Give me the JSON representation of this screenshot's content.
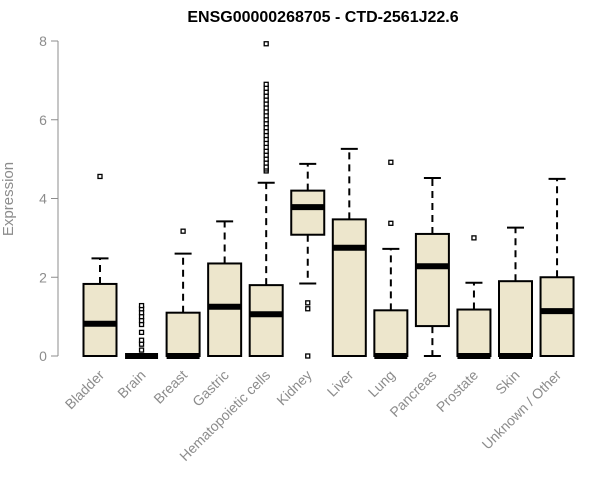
{
  "chart_data": {
    "type": "box",
    "title": "ENSG00000268705 - CTD-2561J22.6",
    "xlabel": "",
    "ylabel": "Expression",
    "ylim": [
      0,
      8
    ],
    "yticks": [
      0,
      2,
      4,
      6,
      8
    ],
    "grid": false,
    "colors": {
      "box_fill": "#ede6cc",
      "stroke": "#000000",
      "axis": "#8c8c8c"
    },
    "categories": [
      "Bladder",
      "Brain",
      "Breast",
      "Gastric",
      "Hematopoietic cells",
      "Kidney",
      "Liver",
      "Lung",
      "Pancreas",
      "Prostate",
      "Skin",
      "Unknown / Other"
    ],
    "boxes": [
      {
        "category": "Bladder",
        "whisker_low": 0,
        "q1": 0,
        "median": 0.82,
        "q3": 1.83,
        "whisker_high": 2.48,
        "outliers": [
          4.56
        ]
      },
      {
        "category": "Brain",
        "whisker_low": 0,
        "q1": 0,
        "median": 0,
        "q3": 0,
        "whisker_high": 0,
        "outliers": [
          0.15,
          0.3,
          0.4,
          0.6,
          0.8,
          0.9,
          1.0,
          1.1,
          1.2,
          1.28
        ]
      },
      {
        "category": "Breast",
        "whisker_low": 0,
        "q1": 0,
        "median": 0,
        "q3": 1.1,
        "whisker_high": 2.6,
        "outliers": [
          3.17
        ]
      },
      {
        "category": "Gastric",
        "whisker_low": 0,
        "q1": 0,
        "median": 1.25,
        "q3": 2.35,
        "whisker_high": 3.42,
        "outliers": []
      },
      {
        "category": "Hematopoietic cells",
        "whisker_low": 0,
        "q1": 0,
        "median": 1.06,
        "q3": 1.8,
        "whisker_high": 4.4,
        "outliers": [
          4.7,
          4.75,
          4.8,
          4.9,
          5.0,
          5.1,
          5.2,
          5.3,
          5.4,
          5.5,
          5.6,
          5.7,
          5.8,
          5.9,
          6.0,
          6.1,
          6.2,
          6.3,
          6.4,
          6.5,
          6.6,
          6.7,
          6.8,
          6.9,
          7.93
        ]
      },
      {
        "category": "Kidney",
        "whisker_low": 1.84,
        "q1": 3.08,
        "median": 3.78,
        "q3": 4.2,
        "whisker_high": 4.88,
        "outliers": [
          0,
          1.2,
          1.35
        ]
      },
      {
        "category": "Liver",
        "whisker_low": 0,
        "q1": 0,
        "median": 2.75,
        "q3": 3.47,
        "whisker_high": 5.26,
        "outliers": []
      },
      {
        "category": "Lung",
        "whisker_low": 0,
        "q1": 0,
        "median": 0,
        "q3": 1.16,
        "whisker_high": 2.72,
        "outliers": [
          3.37,
          4.92
        ]
      },
      {
        "category": "Pancreas",
        "whisker_low": 0,
        "q1": 0.76,
        "median": 2.28,
        "q3": 3.1,
        "whisker_high": 4.52,
        "outliers": []
      },
      {
        "category": "Prostate",
        "whisker_low": 0,
        "q1": 0,
        "median": 0,
        "q3": 1.18,
        "whisker_high": 1.86,
        "outliers": [
          3.0
        ]
      },
      {
        "category": "Skin",
        "whisker_low": 0,
        "q1": 0,
        "median": 0,
        "q3": 1.9,
        "whisker_high": 3.26,
        "outliers": []
      },
      {
        "category": "Unknown / Other",
        "whisker_low": 0,
        "q1": 0,
        "median": 1.14,
        "q3": 2.0,
        "whisker_high": 4.5,
        "outliers": []
      }
    ]
  }
}
